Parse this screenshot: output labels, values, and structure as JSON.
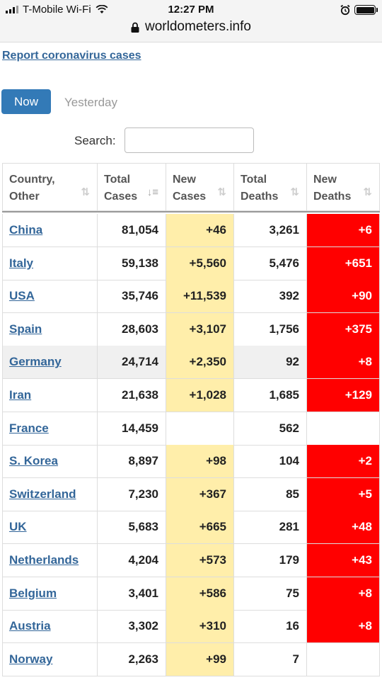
{
  "status_bar": {
    "carrier": "T-Mobile Wi-Fi",
    "time": "12:27 PM",
    "url": "worldometers.info"
  },
  "page": {
    "report_link": "Report coronavirus cases",
    "tabs": [
      {
        "label": "Now",
        "active": true
      },
      {
        "label": "Yesterday",
        "active": false
      }
    ],
    "search": {
      "label": "Search:",
      "value": "",
      "placeholder": ""
    }
  },
  "table": {
    "headers": [
      {
        "line1": "Country,",
        "line2": "Other"
      },
      {
        "line1": "Total",
        "line2": "Cases"
      },
      {
        "line1": "New",
        "line2": "Cases"
      },
      {
        "line1": "Total",
        "line2": "Deaths"
      },
      {
        "line1": "New",
        "line2": "Deaths"
      }
    ],
    "rows": [
      {
        "country": "China",
        "total_cases": "81,054",
        "new_cases": "+46",
        "total_deaths": "3,261",
        "new_deaths": "+6"
      },
      {
        "country": "Italy",
        "total_cases": "59,138",
        "new_cases": "+5,560",
        "total_deaths": "5,476",
        "new_deaths": "+651"
      },
      {
        "country": "USA",
        "total_cases": "35,746",
        "new_cases": "+11,539",
        "total_deaths": "392",
        "new_deaths": "+90"
      },
      {
        "country": "Spain",
        "total_cases": "28,603",
        "new_cases": "+3,107",
        "total_deaths": "1,756",
        "new_deaths": "+375"
      },
      {
        "country": "Germany",
        "total_cases": "24,714",
        "new_cases": "+2,350",
        "total_deaths": "92",
        "new_deaths": "+8"
      },
      {
        "country": "Iran",
        "total_cases": "21,638",
        "new_cases": "+1,028",
        "total_deaths": "1,685",
        "new_deaths": "+129"
      },
      {
        "country": "France",
        "total_cases": "14,459",
        "new_cases": "",
        "total_deaths": "562",
        "new_deaths": ""
      },
      {
        "country": "S. Korea",
        "total_cases": "8,897",
        "new_cases": "+98",
        "total_deaths": "104",
        "new_deaths": "+2"
      },
      {
        "country": "Switzerland",
        "total_cases": "7,230",
        "new_cases": "+367",
        "total_deaths": "85",
        "new_deaths": "+5"
      },
      {
        "country": "UK",
        "total_cases": "5,683",
        "new_cases": "+665",
        "total_deaths": "281",
        "new_deaths": "+48"
      },
      {
        "country": "Netherlands",
        "total_cases": "4,204",
        "new_cases": "+573",
        "total_deaths": "179",
        "new_deaths": "+43"
      },
      {
        "country": "Belgium",
        "total_cases": "3,401",
        "new_cases": "+586",
        "total_deaths": "75",
        "new_deaths": "+8"
      },
      {
        "country": "Austria",
        "total_cases": "3,302",
        "new_cases": "+310",
        "total_deaths": "16",
        "new_deaths": "+8"
      },
      {
        "country": "Norway",
        "total_cases": "2,263",
        "new_cases": "+99",
        "total_deaths": "7",
        "new_deaths": ""
      }
    ]
  },
  "colors": {
    "link": "#336699",
    "button_active": "#337ab7",
    "new_cases_bg": "#ffeeaa",
    "new_deaths_bg": "#ff0000"
  }
}
